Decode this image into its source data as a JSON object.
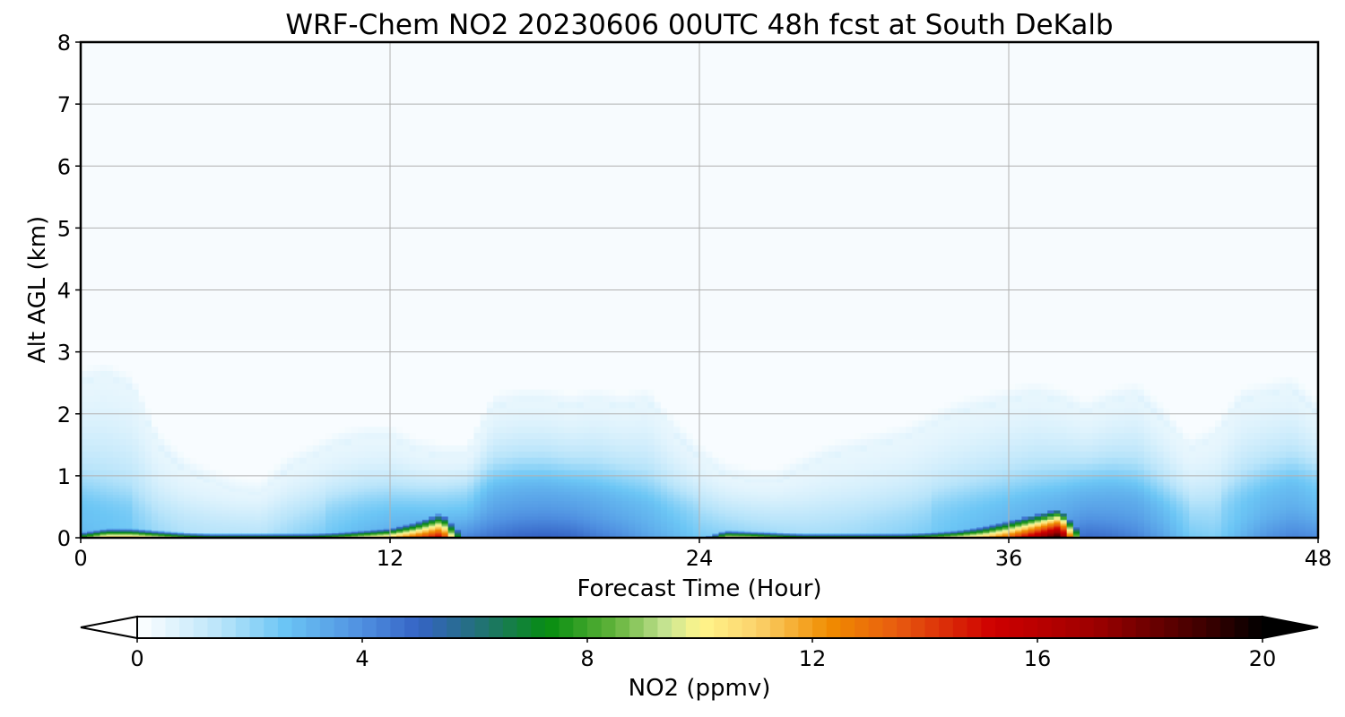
{
  "chart_data": {
    "type": "heatmap",
    "title": "WRF-Chem NO2  20230606 00UTC 48h fcst at South DeKalb",
    "xlabel": "Forecast Time (Hour)",
    "ylabel": "Alt AGL (km)",
    "xlim": [
      0,
      48
    ],
    "ylim": [
      0,
      8
    ],
    "xticks": [
      0,
      12,
      24,
      36,
      48
    ],
    "yticks": [
      0,
      1,
      2,
      3,
      4,
      5,
      6,
      7,
      8
    ],
    "grid": true,
    "colorbar": {
      "label": "NO2  (ppmv)",
      "range": [
        0,
        20
      ],
      "ticks": [
        0,
        4,
        8,
        12,
        16,
        20
      ],
      "extend": "both",
      "color_stops": [
        [
          0,
          "#ffffff"
        ],
        [
          1.5,
          "#b8e4fa"
        ],
        [
          2.6,
          "#6cc6f5"
        ],
        [
          4.0,
          "#4f8fe0"
        ],
        [
          5.0,
          "#3563c5"
        ],
        [
          6.0,
          "#24707d"
        ],
        [
          7.3,
          "#068d10"
        ],
        [
          8.5,
          "#64b43c"
        ],
        [
          9.4,
          "#c7e492"
        ],
        [
          10.0,
          "#fff68c"
        ],
        [
          11.0,
          "#fbd36c"
        ],
        [
          12.3,
          "#f08c00"
        ],
        [
          13.5,
          "#e85c10"
        ],
        [
          15.2,
          "#cf0000"
        ],
        [
          17.0,
          "#9e0000"
        ],
        [
          19.0,
          "#3c0000"
        ],
        [
          20,
          "#000000"
        ]
      ]
    },
    "profiles": {
      "t_hours": [
        0,
        1,
        2,
        3,
        4,
        5,
        6,
        7,
        8,
        9,
        10,
        11,
        12,
        13,
        14,
        15,
        16,
        17,
        18,
        19,
        20,
        21,
        22,
        23,
        24,
        25,
        26,
        27,
        28,
        29,
        30,
        31,
        32,
        33,
        34,
        35,
        36,
        37,
        38,
        39,
        40,
        41,
        42,
        43,
        44,
        45,
        46,
        47,
        48
      ],
      "surface_ppmv": [
        9,
        12,
        12,
        11,
        10,
        9,
        9,
        9,
        9,
        9,
        10,
        11,
        12,
        14,
        16,
        3,
        3,
        3,
        3,
        3,
        3,
        3,
        3,
        3,
        3,
        11,
        11,
        10,
        9,
        9,
        9,
        9,
        9,
        10,
        11,
        12,
        14,
        17,
        20,
        3,
        3,
        3,
        3,
        3,
        3,
        3,
        3,
        3,
        3
      ],
      "surface_layer_depth_km": [
        0.06,
        0.1,
        0.1,
        0.08,
        0.06,
        0.05,
        0.05,
        0.05,
        0.05,
        0.05,
        0.06,
        0.08,
        0.1,
        0.16,
        0.25,
        0,
        0,
        0,
        0,
        0,
        0,
        0,
        0,
        0,
        0,
        0.08,
        0.07,
        0.06,
        0.05,
        0.05,
        0.05,
        0.05,
        0.05,
        0.06,
        0.08,
        0.12,
        0.18,
        0.24,
        0.3,
        0,
        0,
        0,
        0,
        0,
        0,
        0,
        0,
        0,
        0
      ],
      "boundary_ppmv": [
        2.5,
        2.2,
        2.0,
        1.4,
        1.1,
        1.0,
        1.0,
        1.0,
        1.4,
        1.8,
        2.2,
        2.6,
        2.9,
        3.2,
        3.4,
        3.8,
        4.2,
        4.5,
        4.6,
        4.5,
        4.0,
        3.6,
        3.0,
        2.5,
        2.0,
        1.8,
        1.6,
        1.4,
        1.2,
        1.2,
        1.3,
        1.5,
        1.7,
        2.0,
        2.3,
        2.6,
        2.9,
        3.2,
        3.6,
        4.4,
        4.2,
        3.8,
        3.0,
        2.0,
        1.8,
        2.6,
        3.4,
        3.8,
        3.6
      ],
      "boundary_depth_km": [
        2.5,
        2.6,
        2.4,
        1.5,
        1.1,
        0.9,
        0.75,
        0.7,
        1.1,
        1.3,
        1.5,
        1.6,
        1.6,
        1.4,
        1.3,
        1.3,
        2.1,
        2.2,
        2.2,
        2.1,
        2.2,
        2.1,
        2.2,
        1.7,
        1.3,
        1.0,
        0.9,
        0.9,
        1.1,
        1.3,
        1.4,
        1.5,
        1.6,
        1.8,
        2.0,
        2.1,
        2.2,
        2.3,
        2.2,
        2.0,
        2.2,
        2.3,
        1.9,
        1.4,
        1.6,
        2.2,
        2.3,
        2.4,
        2.0
      ],
      "residual_layer_km": [
        0.6,
        0.5,
        0.45,
        0.35,
        0.3,
        0.28,
        0.27,
        0.3,
        0.35,
        0.4,
        0.45,
        0.5,
        0.52,
        0.55,
        0.6,
        0.7,
        0.8,
        0.85,
        0.85,
        0.8,
        0.75,
        0.7,
        0.6,
        0.5,
        0.45,
        0.4,
        0.38,
        0.35,
        0.3,
        0.3,
        0.32,
        0.35,
        0.4,
        0.45,
        0.5,
        0.55,
        0.6,
        0.65,
        0.7,
        0.8,
        0.8,
        0.7,
        0.55,
        0.45,
        0.5,
        0.65,
        0.8,
        0.9,
        0.85
      ]
    }
  }
}
